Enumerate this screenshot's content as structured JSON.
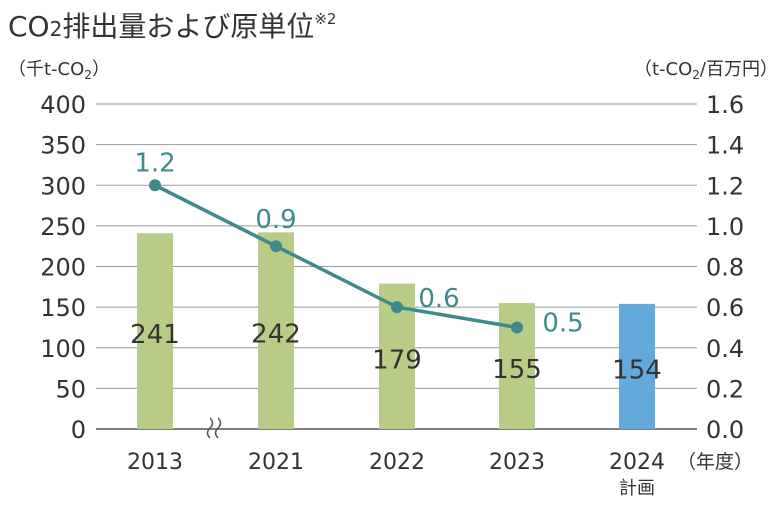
{
  "chart_data": {
    "type": "bar",
    "title": "CO",
    "title_sub": "2",
    "title_rest": "排出量および原単位",
    "title_note": "※2",
    "left_unit": {
      "open": "（千t-CO",
      "sub": "2",
      "close": "）"
    },
    "right_unit": {
      "open": "（t-CO",
      "sub": "2",
      "close": "/百万円）"
    },
    "categories": [
      "2013",
      "2021",
      "2022",
      "2023",
      "2024"
    ],
    "category_notes": [
      "",
      "",
      "",
      "",
      "計画"
    ],
    "x_unit": "（年度）",
    "bars": {
      "values": [
        241,
        242,
        179,
        155,
        154
      ],
      "labels": [
        "241",
        "242",
        "179",
        "155",
        "154"
      ],
      "colors": [
        "#b8cc88",
        "#b8cc88",
        "#b8cc88",
        "#b8cc88",
        "#64a9dc"
      ]
    },
    "line": {
      "values": [
        1.2,
        0.9,
        0.6,
        0.5
      ],
      "labels": [
        "1.2",
        "0.9",
        "0.6",
        "0.5"
      ],
      "color": "#3d8b8b"
    },
    "left_axis": {
      "ylim": [
        0,
        400
      ],
      "ticks": [
        "0",
        "50",
        "100",
        "150",
        "200",
        "250",
        "300",
        "350",
        "400"
      ]
    },
    "right_axis": {
      "ylim": [
        0,
        1.6
      ],
      "ticks": [
        "0.0",
        "0.2",
        "0.4",
        "0.6",
        "0.8",
        "1.0",
        "1.2",
        "1.4",
        "1.6"
      ]
    },
    "grid": true,
    "axis_break_after_first": true
  }
}
